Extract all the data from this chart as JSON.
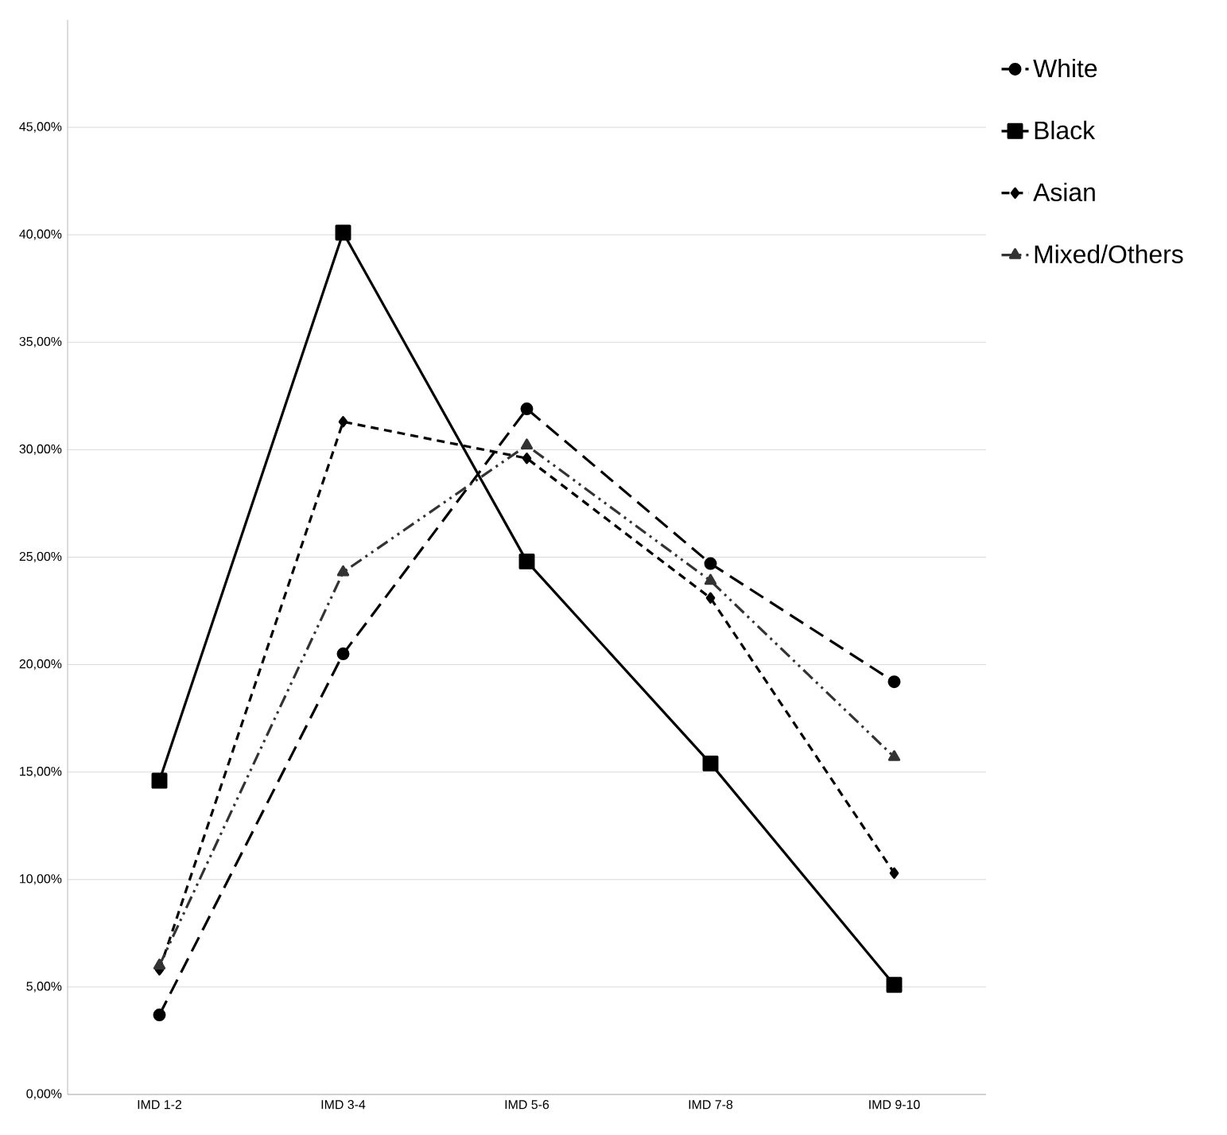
{
  "chart_data": {
    "type": "line",
    "categories": [
      "IMD 1-2",
      "IMD 3-4",
      "IMD 5-6",
      "IMD 7-8",
      "IMD 9-10"
    ],
    "series": [
      {
        "name": "White",
        "color": "#000000",
        "marker": "circle",
        "line_style": "longdashed",
        "values": [
          3.7,
          20.5,
          31.9,
          24.7,
          19.2
        ]
      },
      {
        "name": "Black",
        "color": "#000000",
        "marker": "square",
        "line_style": "solid",
        "values": [
          14.6,
          40.1,
          24.8,
          15.4,
          5.1
        ]
      },
      {
        "name": "Asian",
        "color": "#000000",
        "marker": "diamond",
        "line_style": "dashed",
        "values": [
          5.8,
          31.3,
          29.6,
          23.1,
          10.3
        ]
      },
      {
        "name": "Mixed/Others",
        "color": "#333333",
        "marker": "triangle",
        "line_style": "dashdotdotted",
        "values": [
          6.0,
          24.3,
          30.2,
          23.9,
          15.7
        ]
      }
    ],
    "ylim": [
      0,
      50
    ],
    "yticks": [
      {
        "value": 0,
        "label": "0,00%"
      },
      {
        "value": 5,
        "label": "5,00%"
      },
      {
        "value": 10,
        "label": "10,00%"
      },
      {
        "value": 15,
        "label": "15,00%"
      },
      {
        "value": 20,
        "label": "20,00%"
      },
      {
        "value": 25,
        "label": "25,00%"
      },
      {
        "value": 30,
        "label": "30,00%"
      },
      {
        "value": 35,
        "label": "35,00%"
      },
      {
        "value": 40,
        "label": "40,00%"
      },
      {
        "value": 45,
        "label": "45,00%"
      }
    ],
    "grid": "y",
    "legend": "top right"
  }
}
